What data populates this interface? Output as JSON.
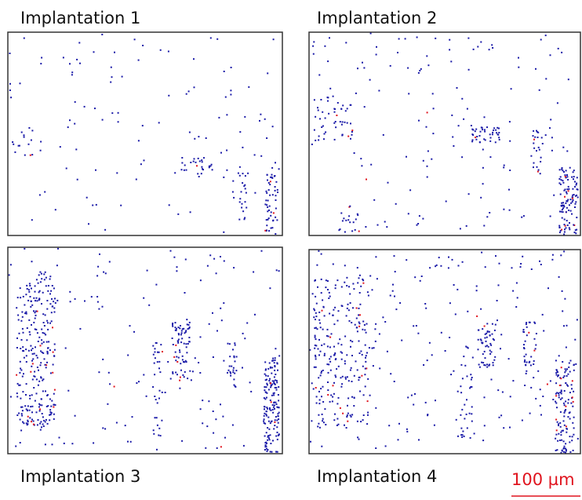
{
  "panels": [
    {
      "label": "Implantation 1"
    },
    {
      "label": "Implantation 2"
    },
    {
      "label": "Implantation 3"
    },
    {
      "label": "Implantation 4"
    }
  ],
  "scale_bar": {
    "label": "100 µm"
  }
}
